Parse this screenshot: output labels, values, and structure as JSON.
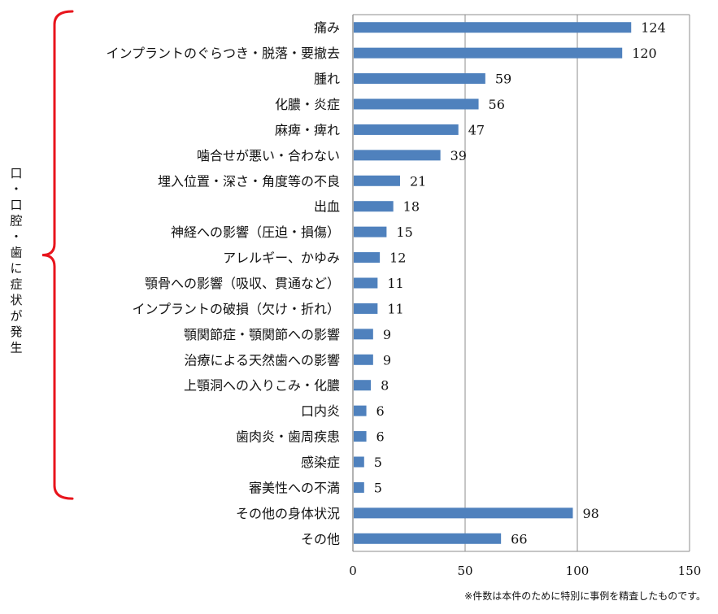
{
  "chart_data": {
    "type": "bar",
    "orientation": "horizontal",
    "categories": [
      "痛み",
      "インプラントのぐらつき・脱落・要撤去",
      "腫れ",
      "化膿・炎症",
      "麻痺・痺れ",
      "噛合せが悪い・合わない",
      "埋入位置・深さ・角度等の不良",
      "出血",
      "神経への影響（圧迫・損傷）",
      "アレルギー、かゆみ",
      "顎骨への影響（吸収、貫通など）",
      "インプラントの破損（欠け・折れ）",
      "顎関節症・顎関節への影響",
      "治療による天然歯への影響",
      "上顎洞への入りこみ・化膿",
      "口内炎",
      "歯肉炎・歯周疾患",
      "感染症",
      "審美性への不満",
      "その他の身体状況",
      "その他"
    ],
    "values": [
      124,
      120,
      59,
      56,
      47,
      39,
      21,
      18,
      15,
      12,
      11,
      11,
      9,
      9,
      8,
      6,
      6,
      5,
      5,
      98,
      66
    ],
    "xlim": [
      0,
      150
    ],
    "x_ticks": [
      0,
      50,
      100,
      150
    ],
    "grid": "vertical",
    "bar_color": "#4f81bd",
    "bracket_color": "#e8141c",
    "group_label": "口・口腔・歯に症状が発生",
    "group_range": [
      0,
      18
    ],
    "footnote": "※件数は本件のために特別に事例を精査したものです。"
  }
}
